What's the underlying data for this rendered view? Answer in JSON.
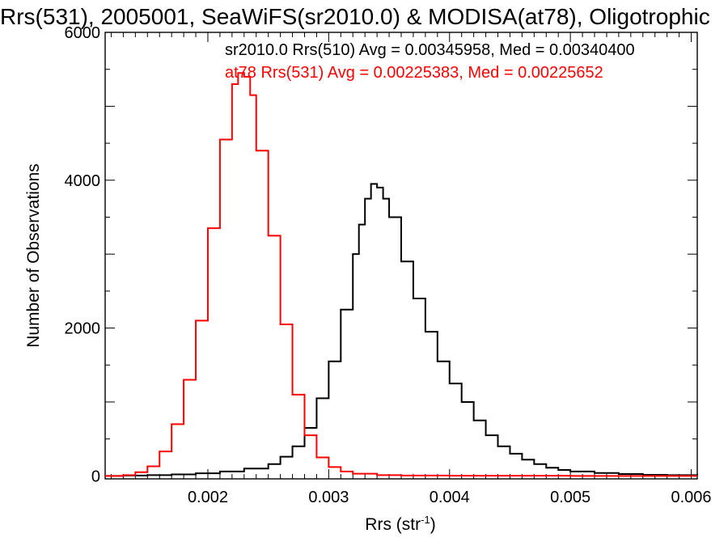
{
  "chart_data": {
    "type": "line",
    "title": "Rrs(531), 2005001, SeaWiFS(sr2010.0) & MODISA(at78), Oligotrophic",
    "xlabel_base": "Rrs (str",
    "xlabel_sup": "-1",
    "xlabel_close": ")",
    "ylabel": "Number of Observations",
    "xlim": [
      0.00115,
      0.00605
    ],
    "ylim": [
      -40,
      6000
    ],
    "xticks": [
      0.002,
      0.003,
      0.004,
      0.005,
      0.006
    ],
    "xtick_labels": [
      "0.002",
      "0.003",
      "0.004",
      "0.005",
      "0.006"
    ],
    "yticks": [
      0,
      2000,
      4000,
      6000
    ],
    "ytick_labels": [
      "0",
      "2000",
      "4000",
      "6000"
    ],
    "grid": false,
    "series": [
      {
        "name": "sr2010.0 Rrs(510)",
        "color": "#000000",
        "annotation": "sr2010.0 Rrs(510) Avg = 0.00345958, Med = 0.00340400",
        "x": [
          0.00115,
          0.0013,
          0.0015,
          0.0017,
          0.0019,
          0.0021,
          0.0023,
          0.0025,
          0.0026,
          0.0027,
          0.0028,
          0.0029,
          0.003,
          0.0031,
          0.0032,
          0.00325,
          0.0033,
          0.00335,
          0.0034,
          0.00345,
          0.0035,
          0.0036,
          0.0037,
          0.0038,
          0.0039,
          0.004,
          0.0041,
          0.0042,
          0.0043,
          0.0044,
          0.0045,
          0.0046,
          0.0047,
          0.0048,
          0.0049,
          0.005,
          0.0052,
          0.0054,
          0.0056,
          0.0058,
          0.00605
        ],
        "y": [
          0,
          5,
          10,
          20,
          35,
          60,
          100,
          160,
          260,
          400,
          650,
          1050,
          1550,
          2250,
          3000,
          3400,
          3750,
          3950,
          3900,
          3750,
          3500,
          2900,
          2400,
          1950,
          1550,
          1250,
          1000,
          750,
          550,
          400,
          300,
          220,
          160,
          110,
          80,
          60,
          40,
          25,
          15,
          10,
          5
        ]
      },
      {
        "name": "at78 Rrs(531)",
        "color": "#ff0000",
        "annotation": "at78 Rrs(531) Avg = 0.00225383, Med = 0.00225652",
        "x": [
          0.00115,
          0.0013,
          0.0014,
          0.0015,
          0.0016,
          0.0017,
          0.0018,
          0.0019,
          0.002,
          0.0021,
          0.0022,
          0.00225,
          0.0023,
          0.00235,
          0.0024,
          0.0025,
          0.0026,
          0.0027,
          0.0028,
          0.0029,
          0.003,
          0.0031,
          0.0032,
          0.0034,
          0.0036,
          0.004,
          0.005,
          0.00605
        ],
        "y": [
          0,
          10,
          50,
          130,
          330,
          700,
          1300,
          2100,
          3350,
          4550,
          5300,
          5450,
          5400,
          5150,
          4400,
          3250,
          2050,
          1100,
          550,
          250,
          120,
          60,
          30,
          10,
          5,
          2,
          0,
          0
        ]
      }
    ]
  }
}
